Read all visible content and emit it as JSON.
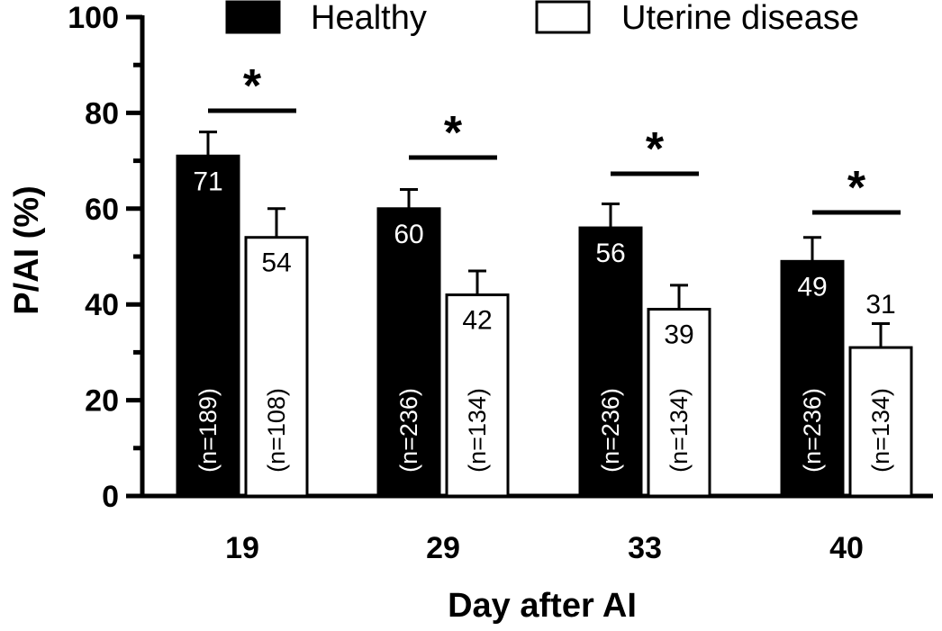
{
  "chart_data": {
    "type": "bar",
    "title": "",
    "xlabel": "Day after AI",
    "ylabel": "P/AI (%)",
    "ylim": [
      0,
      100
    ],
    "yticks": [
      0,
      20,
      40,
      60,
      80,
      100
    ],
    "categories": [
      "19",
      "29",
      "33",
      "40"
    ],
    "series": [
      {
        "name": "Healthy",
        "color": "#000000",
        "values": [
          71,
          60,
          56,
          49
        ],
        "errors": [
          5,
          4,
          5,
          5
        ],
        "value_labels": [
          "71",
          "60",
          "56",
          "49"
        ],
        "n_labels": [
          "(n=189)",
          "(n=236)",
          "(n=236)",
          "(n=236)"
        ]
      },
      {
        "name": "Uterine disease",
        "color": "#ffffff",
        "values": [
          54,
          42,
          39,
          31
        ],
        "errors": [
          6,
          5,
          5,
          5
        ],
        "value_labels": [
          "54",
          "42",
          "39",
          "31"
        ],
        "n_labels": [
          "(n=108)",
          "(n=134)",
          "(n=134)",
          "(n=134)"
        ]
      }
    ],
    "significance": [
      {
        "category": "19",
        "marker": "*"
      },
      {
        "category": "29",
        "marker": "*"
      },
      {
        "category": "33",
        "marker": "*"
      },
      {
        "category": "40",
        "marker": "*"
      }
    ],
    "legend_position": "top",
    "grid": false
  }
}
